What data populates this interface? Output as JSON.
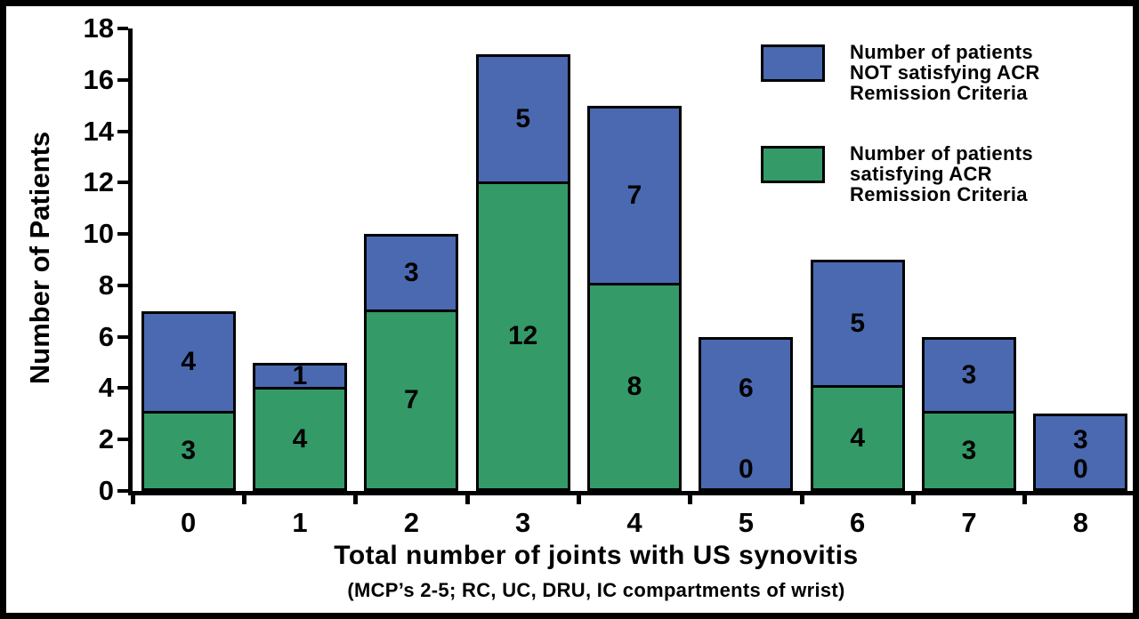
{
  "chart_data": {
    "type": "bar",
    "stacked": true,
    "categories": [
      "0",
      "1",
      "2",
      "3",
      "4",
      "5",
      "6",
      "7",
      "8"
    ],
    "series": [
      {
        "name": "Number of patients satisfying ACR Remission Criteria",
        "color": "#349a68",
        "values": [
          3,
          4,
          7,
          12,
          8,
          0,
          4,
          3,
          0
        ]
      },
      {
        "name": "Number of patients NOT satisfying ACR Remission Criteria",
        "color": "#4a69b0",
        "values": [
          4,
          1,
          3,
          5,
          7,
          6,
          5,
          3,
          3
        ]
      }
    ],
    "ylabel": "Number of Patients",
    "xlabel": "Total number of joints with US synovitis",
    "xlabel_note": "(MCP’s 2-5; RC, UC, DRU, IC compartments of wrist)",
    "ylim": [
      0,
      18
    ],
    "yticks": [
      0,
      2,
      4,
      6,
      8,
      10,
      12,
      14,
      16,
      18
    ],
    "grid": false,
    "legend_position": "top-right",
    "bar_value_labels_shown": true
  },
  "legend": {
    "items": [
      {
        "key": "not-satisfying",
        "color": "#4a69b0",
        "label": "Number of patients NOT satisfying ACR Remission Criteria",
        "label_lines": [
          "Number of patients",
          "NOT satisfying ACR",
          "Remission Criteria"
        ]
      },
      {
        "key": "satisfying",
        "color": "#349a68",
        "label": "Number of patients satisfying ACR Remission Criteria",
        "label_lines": [
          "Number of patients",
          "satisfying ACR",
          "Remission Criteria"
        ]
      }
    ]
  }
}
